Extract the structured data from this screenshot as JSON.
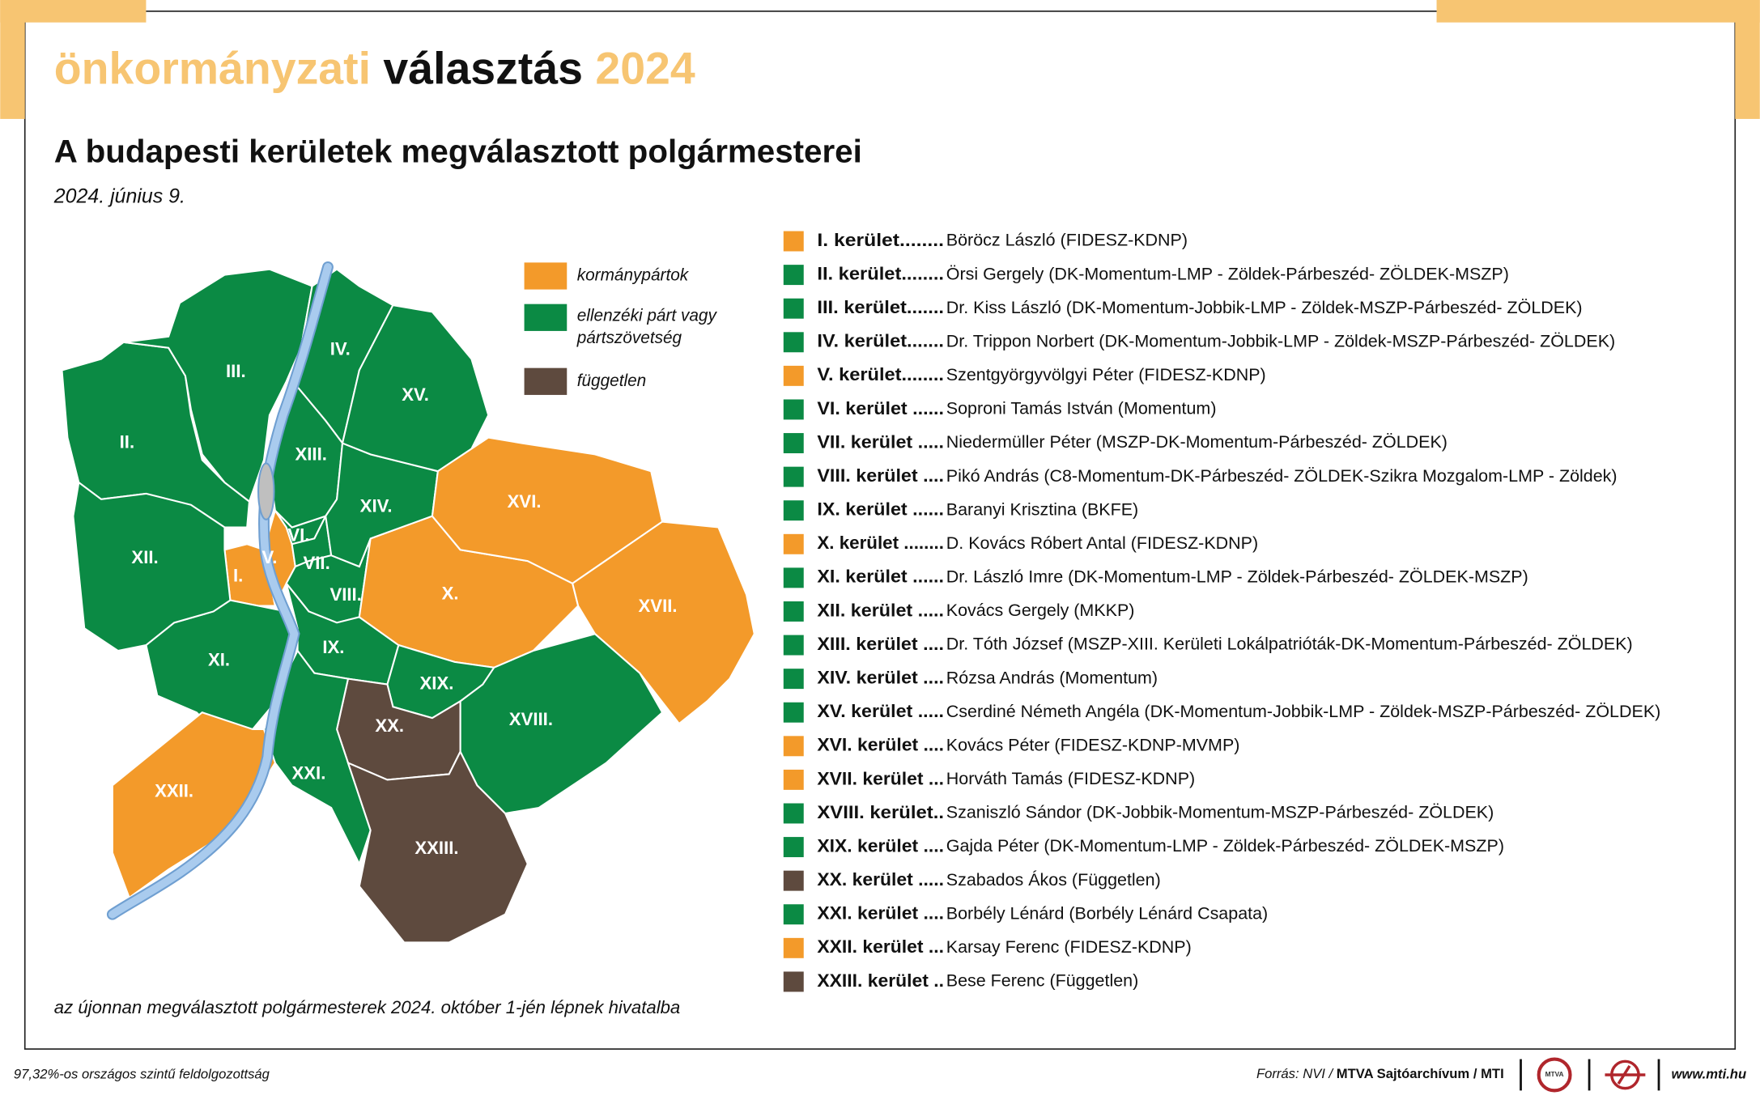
{
  "header": {
    "title_light": "önkormányzati",
    "title_bold": "választás",
    "title_year": "2024"
  },
  "title": "A budapesti kerületek megválasztott polgármesterei",
  "date": "2024. június 9.",
  "legend": [
    {
      "label": "kormánypártok",
      "color": "#f39a2a"
    },
    {
      "label": "ellenzéki párt vagy",
      "label2": "pártszövetség",
      "color": "#0b8a44"
    },
    {
      "label": "független",
      "color": "#5e4a3e"
    }
  ],
  "districts": [
    {
      "name": "I. kerület........",
      "mayor": "Böröcz László (FIDESZ-KDNP)",
      "map_label": "I.",
      "color": "#f39a2a"
    },
    {
      "name": "II. kerület........",
      "mayor": "Örsi Gergely (DK-Momentum-LMP - Zöldek-Párbeszéd- ZÖLDEK-MSZP)",
      "map_label": "II.",
      "color": "#0b8a44"
    },
    {
      "name": "III. kerület.......",
      "mayor": "Dr. Kiss László (DK-Momentum-Jobbik-LMP - Zöldek-MSZP-Párbeszéd- ZÖLDEK)",
      "map_label": "III.",
      "color": "#0b8a44"
    },
    {
      "name": "IV. kerület.......",
      "mayor": "Dr. Trippon Norbert (DK-Momentum-Jobbik-LMP - Zöldek-MSZP-Párbeszéd- ZÖLDEK)",
      "map_label": "IV.",
      "color": "#0b8a44"
    },
    {
      "name": "V. kerület........",
      "mayor": "Szentgyörgyvölgyi Péter (FIDESZ-KDNP)",
      "map_label": "V.",
      "color": "#f39a2a"
    },
    {
      "name": "VI. kerület ......",
      "mayor": "Soproni Tamás István (Momentum)",
      "map_label": "VI.",
      "color": "#0b8a44"
    },
    {
      "name": "VII. kerület .....",
      "mayor": "Niedermüller Péter (MSZP-DK-Momentum-Párbeszéd- ZÖLDEK)",
      "map_label": "VII.",
      "color": "#0b8a44"
    },
    {
      "name": "VIII. kerület ....",
      "mayor": "Pikó András (C8-Momentum-DK-Párbeszéd- ZÖLDEK-Szikra Mozgalom-LMP - Zöldek)",
      "map_label": "VIII.",
      "color": "#0b8a44"
    },
    {
      "name": "IX. kerület ......",
      "mayor": "Baranyi Krisztina (BKFE)",
      "map_label": "IX.",
      "color": "#0b8a44"
    },
    {
      "name": "X. kerület ........",
      "mayor": "D. Kovács Róbert Antal (FIDESZ-KDNP)",
      "map_label": "X.",
      "color": "#f39a2a"
    },
    {
      "name": "XI. kerület ......",
      "mayor": "Dr. László Imre (DK-Momentum-LMP - Zöldek-Párbeszéd- ZÖLDEK-MSZP)",
      "map_label": "XI.",
      "color": "#0b8a44"
    },
    {
      "name": "XII. kerület .....",
      "mayor": "Kovács Gergely (MKKP)",
      "map_label": "XII.",
      "color": "#0b8a44"
    },
    {
      "name": "XIII. kerület ....",
      "mayor": "Dr. Tóth József (MSZP-XIII. Kerületi Lokálpatrióták-DK-Momentum-Párbeszéd- ZÖLDEK)",
      "map_label": "XIII.",
      "color": "#0b8a44"
    },
    {
      "name": "XIV. kerület ....",
      "mayor": "Rózsa András (Momentum)",
      "map_label": "XIV.",
      "color": "#0b8a44"
    },
    {
      "name": "XV. kerület .....",
      "mayor": "Cserdiné Németh Angéla (DK-Momentum-Jobbik-LMP - Zöldek-MSZP-Párbeszéd- ZÖLDEK)",
      "map_label": "XV.",
      "color": "#0b8a44"
    },
    {
      "name": "XVI. kerület ....",
      "mayor": "Kovács Péter (FIDESZ-KDNP-MVMP)",
      "map_label": "XVI.",
      "color": "#f39a2a"
    },
    {
      "name": "XVII. kerület ...",
      "mayor": "Horváth Tamás (FIDESZ-KDNP)",
      "map_label": "XVII.",
      "color": "#f39a2a"
    },
    {
      "name": "XVIII. kerület..",
      "mayor": "Szaniszló Sándor (DK-Jobbik-Momentum-MSZP-Párbeszéd- ZÖLDEK)",
      "map_label": "XVIII.",
      "color": "#0b8a44"
    },
    {
      "name": "XIX. kerület ....",
      "mayor": "Gajda Péter (DK-Momentum-LMP - Zöldek-Párbeszéd- ZÖLDEK-MSZP)",
      "map_label": "XIX.",
      "color": "#0b8a44"
    },
    {
      "name": "XX. kerület .....",
      "mayor": "Szabados Ákos (Független)",
      "map_label": "XX.",
      "color": "#5e4a3e"
    },
    {
      "name": "XXI. kerület ....",
      "mayor": "Borbély Lénárd (Borbély Lénárd Csapata)",
      "map_label": "XXI.",
      "color": "#0b8a44"
    },
    {
      "name": "XXII. kerület ...",
      "mayor": "Karsay Ferenc (FIDESZ-KDNP)",
      "map_label": "XXII.",
      "color": "#f39a2a"
    },
    {
      "name": "XXIII. kerület ..",
      "mayor": "Bese Ferenc (Független)",
      "map_label": "XXIII.",
      "color": "#5e4a3e"
    }
  ],
  "footnote": "az újonnan megválasztott polgármesterek 2024. október 1-jén lépnek hivatalba",
  "status": "97,32%-os országos szintű feldolgozottság",
  "source_prefix": "Forrás: NVI / ",
  "source_bold": "MTVA Sajtóarchívum / MTI",
  "logo_text": "MTVA",
  "website": "www.mti.hu"
}
